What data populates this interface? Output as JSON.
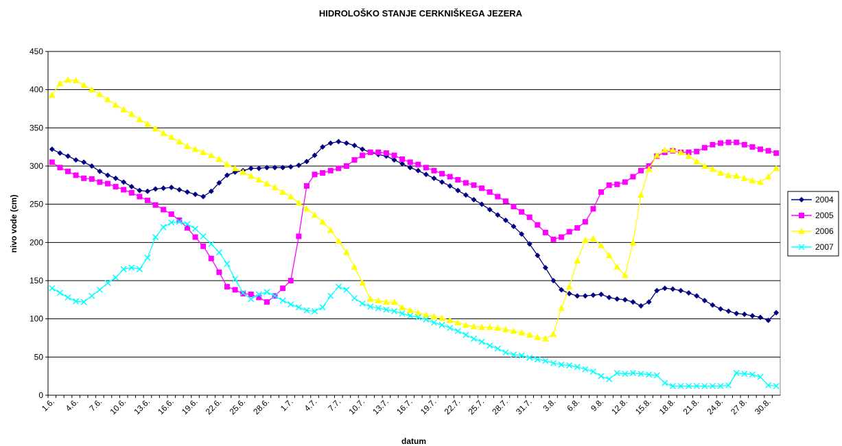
{
  "chart_data": {
    "type": "line",
    "title": "HIDROLOŠKO STANJE CERKNIŠKEGA JEZERA",
    "x_label": "datum",
    "y_label": "nivo vode (cm)",
    "categories": [
      "1.6.",
      null,
      null,
      "4.6.",
      null,
      null,
      "7.6.",
      null,
      null,
      "10.6.",
      null,
      null,
      "13.6.",
      null,
      null,
      "16.6.",
      null,
      null,
      "19.6.",
      null,
      null,
      "22.6.",
      null,
      null,
      "25.6.",
      null,
      null,
      "28.6.",
      null,
      null,
      "1.7.",
      null,
      null,
      "4.7.",
      null,
      null,
      "7.7.",
      null,
      null,
      "10.7.",
      null,
      null,
      "13.7.",
      null,
      null,
      "16.7.",
      null,
      null,
      "19.7.",
      null,
      null,
      "22.7.",
      null,
      null,
      "25.7.",
      null,
      null,
      "28.7.",
      null,
      null,
      "31.7.",
      null,
      null,
      "3.8.",
      null,
      null,
      "6.8.",
      null,
      null,
      "9.8.",
      null,
      null,
      "12.8.",
      null,
      null,
      "15.8.",
      null,
      null,
      "18.8.",
      null,
      null,
      "21.8.",
      null,
      null,
      "24.8.",
      null,
      null,
      "27.8.",
      null,
      null,
      "30.8.",
      null
    ],
    "series": [
      {
        "name": "2004",
        "color": "#000080",
        "marker": "diamond",
        "values": [
          322,
          317,
          313,
          308,
          305,
          300,
          293,
          288,
          284,
          279,
          273,
          268,
          267,
          270,
          271,
          272,
          269,
          266,
          263,
          260,
          267,
          278,
          288,
          292,
          294,
          297,
          297,
          298,
          298,
          298,
          299,
          301,
          306,
          314,
          325,
          330,
          332,
          330,
          327,
          322,
          318,
          315,
          313,
          308,
          303,
          298,
          294,
          289,
          284,
          279,
          274,
          268,
          262,
          256,
          250,
          243,
          236,
          229,
          221,
          211,
          198,
          183,
          167,
          150,
          138,
          133,
          130,
          130,
          131,
          132,
          128,
          126,
          125,
          122,
          117,
          122,
          137,
          140,
          139,
          137,
          134,
          130,
          124,
          118,
          113,
          110,
          107,
          106,
          104,
          102,
          98,
          108
        ]
      },
      {
        "name": "2005",
        "color": "#ff00ff",
        "marker": "square",
        "values": [
          305,
          298,
          293,
          288,
          284,
          283,
          279,
          277,
          273,
          269,
          265,
          260,
          255,
          249,
          243,
          237,
          229,
          219,
          207,
          195,
          179,
          161,
          142,
          138,
          133,
          132,
          128,
          122,
          130,
          140,
          150,
          208,
          274,
          289,
          291,
          294,
          297,
          300,
          308,
          314,
          318,
          318,
          317,
          314,
          309,
          305,
          302,
          298,
          294,
          290,
          286,
          282,
          278,
          275,
          271,
          266,
          260,
          254,
          247,
          240,
          233,
          223,
          213,
          204,
          207,
          214,
          219,
          227,
          244,
          266,
          275,
          276,
          279,
          286,
          294,
          300,
          313,
          318,
          320,
          318,
          318,
          319,
          324,
          328,
          330,
          331,
          331,
          328,
          325,
          322,
          320,
          317
        ]
      },
      {
        "name": "2006",
        "color": "#ffff00",
        "marker": "triangle",
        "values": [
          393,
          408,
          413,
          412,
          406,
          400,
          394,
          387,
          380,
          374,
          368,
          361,
          355,
          349,
          343,
          338,
          332,
          326,
          322,
          318,
          314,
          309,
          302,
          297,
          292,
          287,
          282,
          277,
          272,
          266,
          260,
          252,
          244,
          236,
          227,
          216,
          202,
          187,
          168,
          147,
          126,
          124,
          122,
          122,
          115,
          111,
          108,
          105,
          103,
          101,
          98,
          95,
          92,
          90,
          89,
          89,
          88,
          86,
          84,
          82,
          79,
          76,
          74,
          80,
          114,
          142,
          176,
          203,
          205,
          196,
          183,
          168,
          157,
          200,
          262,
          296,
          314,
          321,
          321,
          318,
          313,
          306,
          300,
          296,
          291,
          288,
          287,
          284,
          281,
          279,
          286,
          297
        ]
      },
      {
        "name": "2007",
        "color": "#00ffff",
        "marker": "cross",
        "values": [
          140,
          134,
          128,
          123,
          122,
          130,
          138,
          147,
          154,
          165,
          167,
          165,
          180,
          207,
          220,
          226,
          227,
          224,
          218,
          208,
          198,
          187,
          172,
          152,
          134,
          126,
          132,
          135,
          130,
          124,
          119,
          115,
          111,
          110,
          115,
          130,
          142,
          138,
          127,
          120,
          116,
          114,
          112,
          110,
          107,
          104,
          102,
          99,
          95,
          92,
          88,
          84,
          79,
          74,
          70,
          65,
          61,
          56,
          53,
          52,
          49,
          47,
          45,
          42,
          40,
          39,
          37,
          34,
          31,
          25,
          21,
          29,
          28,
          29,
          28,
          27,
          26,
          16,
          12,
          12,
          12,
          12,
          12,
          12,
          12,
          13,
          29,
          28,
          27,
          24,
          13,
          12
        ]
      }
    ],
    "ylim": [
      0,
      450
    ],
    "yticks": [
      0,
      50,
      100,
      150,
      200,
      250,
      300,
      350,
      400,
      450
    ],
    "grid": true,
    "legend": "right"
  }
}
